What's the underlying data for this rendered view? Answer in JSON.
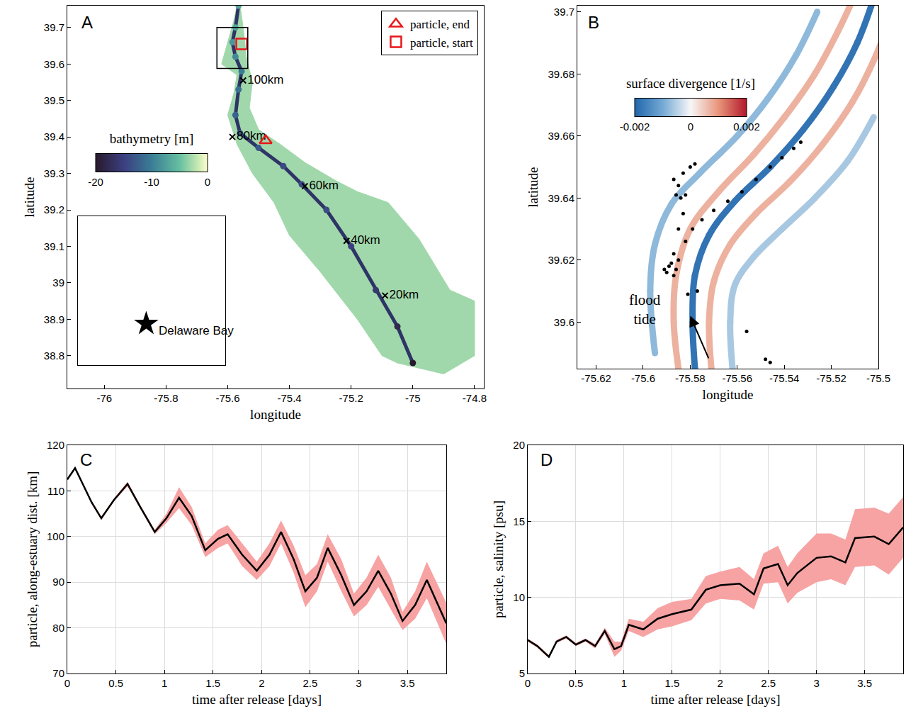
{
  "chart_data": [
    {
      "type": "map",
      "panel": "A",
      "x_label": "longitude",
      "y_label": "latitude",
      "xlim": [
        -76.12,
        -74.77
      ],
      "xticks": [
        -76,
        -75.8,
        -75.6,
        -75.4,
        -75.2,
        -75,
        -74.8
      ],
      "ylim": [
        38.71,
        39.76
      ],
      "yticks": [
        38.8,
        38.9,
        39,
        39.1,
        39.2,
        39.3,
        39.4,
        39.5,
        39.6,
        39.7
      ],
      "colorbar": {
        "title": "bathymetry [m]",
        "clim": [
          -20,
          0
        ],
        "ticks": [
          -20,
          -10,
          0
        ]
      },
      "estuary": {
        "depth": -3,
        "lon": [
          -75.56,
          -75.55,
          -75.54,
          -75.52,
          -75.53,
          -75.5,
          -75.43,
          -75.35,
          -75.25,
          -75.18,
          -75.08,
          -74.98,
          -74.93,
          -74.88,
          -74.8,
          -74.8,
          -74.9,
          -75.05,
          -75.1,
          -75.18,
          -75.3,
          -75.4,
          -75.45,
          -75.52,
          -75.57,
          -75.6,
          -75.58,
          -75.57,
          -75.62,
          -75.6,
          -75.58,
          -75.57
        ],
        "lat": [
          39.76,
          39.7,
          39.62,
          39.55,
          39.48,
          39.42,
          39.38,
          39.33,
          39.28,
          39.25,
          39.22,
          39.12,
          39.05,
          38.98,
          38.95,
          38.8,
          38.75,
          38.78,
          38.8,
          38.9,
          39.03,
          39.13,
          39.22,
          39.3,
          39.38,
          39.46,
          39.52,
          39.57,
          39.6,
          39.66,
          39.72,
          39.76
        ]
      },
      "channel": {
        "lon": [
          -75.565,
          -75.575,
          -75.585,
          -75.575,
          -75.555,
          -75.565,
          -75.575,
          -75.56,
          -75.5,
          -75.42,
          -75.36,
          -75.28,
          -75.2,
          -75.12,
          -75.05,
          -75.0
        ],
        "lat": [
          39.76,
          39.7,
          39.66,
          39.62,
          39.58,
          39.53,
          39.46,
          39.41,
          39.37,
          39.32,
          39.27,
          39.2,
          39.1,
          38.98,
          38.88,
          38.78
        ],
        "depth": [
          -7,
          -7,
          -8,
          -9,
          -10,
          -11,
          -12,
          -13,
          -13,
          -14,
          -14,
          -14,
          -15,
          -16,
          -18,
          -20
        ]
      },
      "distance_marks": [
        {
          "label": "100km",
          "x": -75.55,
          "y": 39.555
        },
        {
          "label": "80km",
          "x": -75.585,
          "y": 39.4
        },
        {
          "label": "60km",
          "x": -75.35,
          "y": 39.265
        },
        {
          "label": "40km",
          "x": -75.215,
          "y": 39.115
        },
        {
          "label": "20km",
          "x": -75.09,
          "y": 38.965
        }
      ],
      "box": {
        "x": [
          -75.635,
          -75.535
        ],
        "y": [
          39.588,
          39.7
        ]
      },
      "particles": [
        {
          "name": "particle, start",
          "x": -75.555,
          "y": 39.655,
          "marker": "square-open",
          "color": "#e8161b"
        },
        {
          "name": "particle, end",
          "x": -75.477,
          "y": 39.39,
          "marker": "triangle-up-open",
          "color": "#e8161b"
        }
      ],
      "legend": "top right",
      "inset": {
        "xlim": [
          -80.5,
          -69.5
        ],
        "ylim": [
          36.5,
          45.5
        ],
        "tick_labels": false,
        "star": [
          -75.4,
          39.0
        ],
        "label": "Delaware Bay",
        "label_x": -74.6,
        "label_y": 38.6
      }
    },
    {
      "type": "field",
      "panel": "B",
      "x_label": "longitude",
      "y_label": "latitude",
      "xlim": [
        -75.628,
        -75.5
      ],
      "xticks": [
        -75.62,
        -75.6,
        -75.58,
        -75.56,
        -75.54,
        -75.52,
        -75.5
      ],
      "ylim": [
        39.585,
        39.702
      ],
      "yticks": [
        39.6,
        39.62,
        39.64,
        39.66,
        39.68,
        39.7
      ],
      "colorbar": {
        "title": "surface divergence [1/s]",
        "clim": [
          -0.002,
          0.002
        ],
        "ticks": [
          -0.002,
          0,
          0.002
        ]
      },
      "fronts": [
        {
          "divergence": -0.0008,
          "lon": [
            -75.595,
            -75.597,
            -75.595,
            -75.588,
            -75.576,
            -75.56,
            -75.547,
            -75.535,
            -75.526
          ],
          "lat": [
            39.59,
            39.61,
            39.625,
            39.638,
            39.648,
            39.66,
            39.672,
            39.686,
            39.7
          ]
        },
        {
          "divergence": -0.0006,
          "lon": [
            -75.562,
            -75.563,
            -75.561,
            -75.553,
            -75.541,
            -75.527,
            -75.513,
            -75.502
          ],
          "lat": [
            39.585,
            39.6,
            39.612,
            39.621,
            39.63,
            39.64,
            39.652,
            39.666
          ]
        },
        {
          "divergence": 0.0007,
          "lon": [
            -75.585,
            -75.587,
            -75.586,
            -75.58,
            -75.568,
            -75.553,
            -75.54,
            -75.527,
            -75.517,
            -75.512
          ],
          "lat": [
            39.585,
            39.6,
            39.615,
            39.63,
            39.642,
            39.654,
            39.666,
            39.68,
            39.694,
            39.702
          ]
        },
        {
          "divergence": 0.0007,
          "lon": [
            -75.571,
            -75.572,
            -75.57,
            -75.563,
            -75.552,
            -75.538,
            -75.524,
            -75.511,
            -75.501,
            -75.495
          ],
          "lat": [
            39.585,
            39.6,
            39.613,
            39.625,
            39.635,
            39.645,
            39.657,
            39.671,
            39.686,
            39.698
          ]
        },
        {
          "divergence": -0.0018,
          "lon": [
            -75.578,
            -75.579,
            -75.578,
            -75.572,
            -75.561,
            -75.546,
            -75.532,
            -75.519,
            -75.509,
            -75.503
          ],
          "lat": [
            39.585,
            39.6,
            39.615,
            39.628,
            39.639,
            39.65,
            39.662,
            39.676,
            39.69,
            39.702
          ]
        }
      ],
      "particles": {
        "color": "#000000",
        "lon": [
          -75.59,
          -75.589,
          -75.587,
          -75.588,
          -75.586,
          -75.591,
          -75.585,
          -75.587,
          -75.582,
          -75.579,
          -75.575,
          -75.57,
          -75.564,
          -75.558,
          -75.552,
          -75.546,
          -75.541,
          -75.536,
          -75.533,
          -75.586,
          -75.584,
          -75.582,
          -75.585,
          -75.587,
          -75.583,
          -75.58,
          -75.578,
          -75.585,
          -75.583,
          -75.581,
          -75.577,
          -75.556,
          -75.548,
          -75.546
        ],
        "lat": [
          39.616,
          39.618,
          39.615,
          39.619,
          39.617,
          39.617,
          39.62,
          39.622,
          39.626,
          39.63,
          39.633,
          39.636,
          39.639,
          39.642,
          39.646,
          39.65,
          39.653,
          39.656,
          39.658,
          39.641,
          39.64,
          39.641,
          39.644,
          39.646,
          39.648,
          39.65,
          39.651,
          39.63,
          39.635,
          39.609,
          39.61,
          39.597,
          39.588,
          39.587
        ]
      },
      "annotation": {
        "text": "flood tide",
        "x": -75.592,
        "y": 39.604,
        "arrow_from": [
          -75.572,
          39.588
        ],
        "arrow_to": [
          -75.58,
          39.602
        ]
      }
    },
    {
      "type": "line_band",
      "panel": "C",
      "x_label": "time after release [days]",
      "y_label": "particle, along-estuary dist. [km]",
      "xlim": [
        0,
        3.9
      ],
      "xticks": [
        0,
        0.5,
        1,
        1.5,
        2,
        2.5,
        3,
        3.5
      ],
      "ylim": [
        70,
        120
      ],
      "yticks": [
        70,
        80,
        90,
        100,
        110,
        120
      ],
      "grid": true,
      "color": "#000000",
      "band_color": "#f7a3a3",
      "x": [
        0,
        0.08,
        0.25,
        0.35,
        0.48,
        0.62,
        0.75,
        0.9,
        1.02,
        1.15,
        1.28,
        1.42,
        1.55,
        1.65,
        1.8,
        1.95,
        2.08,
        2.2,
        2.33,
        2.45,
        2.57,
        2.68,
        2.82,
        2.95,
        3.08,
        3.2,
        3.33,
        3.45,
        3.58,
        3.7,
        3.9
      ],
      "values": [
        112.5,
        115,
        107.5,
        104,
        108,
        111.5,
        106.5,
        101,
        104,
        108.5,
        104.5,
        97,
        99.5,
        100.5,
        96,
        92.5,
        96,
        101,
        95,
        88,
        91,
        97.5,
        91.5,
        85,
        88,
        92.5,
        87.5,
        81.5,
        85,
        90.5,
        81
      ],
      "lower": [
        112.3,
        114.7,
        107.2,
        103.6,
        107.7,
        111.0,
        106.1,
        100.5,
        103.0,
        106.2,
        102.5,
        95.5,
        97.5,
        98.5,
        93.5,
        90.5,
        93.5,
        98.5,
        92.0,
        84.5,
        88.0,
        94.5,
        88.0,
        82.5,
        85.0,
        89.0,
        84.0,
        79.5,
        82.0,
        86.5,
        76.5
      ],
      "upper": [
        112.7,
        115.3,
        107.8,
        104.4,
        108.3,
        112.0,
        106.9,
        101.5,
        105.0,
        110.8,
        106.5,
        98.5,
        101.5,
        102.5,
        98.5,
        94.5,
        98.5,
        103.5,
        98.0,
        91.5,
        94.0,
        100.5,
        95.0,
        87.5,
        91.0,
        96.0,
        91.0,
        83.5,
        88.0,
        94.5,
        85.5
      ]
    },
    {
      "type": "line_band",
      "panel": "D",
      "x_label": "time after release [days]",
      "y_label": "particle, salinity [psu]",
      "xlim": [
        0,
        3.9
      ],
      "xticks": [
        0,
        0.5,
        1,
        1.5,
        2,
        2.5,
        3,
        3.5
      ],
      "ylim": [
        5,
        20
      ],
      "yticks": [
        5,
        10,
        15,
        20
      ],
      "grid": true,
      "color": "#000000",
      "band_color": "#f7a3a3",
      "x": [
        0,
        0.1,
        0.22,
        0.3,
        0.4,
        0.5,
        0.6,
        0.7,
        0.8,
        0.9,
        0.97,
        1.05,
        1.2,
        1.35,
        1.5,
        1.7,
        1.85,
        2.0,
        2.2,
        2.35,
        2.45,
        2.6,
        2.7,
        2.8,
        3.0,
        3.15,
        3.3,
        3.4,
        3.6,
        3.75,
        3.9
      ],
      "values": [
        7.2,
        6.8,
        6.1,
        7.1,
        7.4,
        6.9,
        7.2,
        6.8,
        7.8,
        6.6,
        6.8,
        8.2,
        7.9,
        8.6,
        8.9,
        9.2,
        10.5,
        10.8,
        10.9,
        10.2,
        11.9,
        12.2,
        10.8,
        11.6,
        12.6,
        12.7,
        12.3,
        13.9,
        14.0,
        13.5,
        14.6
      ],
      "lower": [
        7.1,
        6.7,
        6.0,
        7.0,
        7.3,
        6.8,
        7.1,
        6.65,
        7.6,
        6.1,
        6.5,
        7.8,
        7.4,
        7.9,
        8.1,
        8.5,
        9.6,
        9.9,
        9.8,
        9.2,
        10.9,
        11.0,
        9.6,
        10.3,
        11.0,
        11.2,
        10.8,
        12.0,
        12.1,
        11.5,
        12.6
      ],
      "upper": [
        7.3,
        6.9,
        6.2,
        7.2,
        7.5,
        7.0,
        7.3,
        6.95,
        8.0,
        7.1,
        7.1,
        8.6,
        8.4,
        9.3,
        9.7,
        9.9,
        11.4,
        11.7,
        12.0,
        11.2,
        12.9,
        13.4,
        12.0,
        12.9,
        14.2,
        14.2,
        13.8,
        15.8,
        15.9,
        15.5,
        16.6
      ]
    }
  ]
}
